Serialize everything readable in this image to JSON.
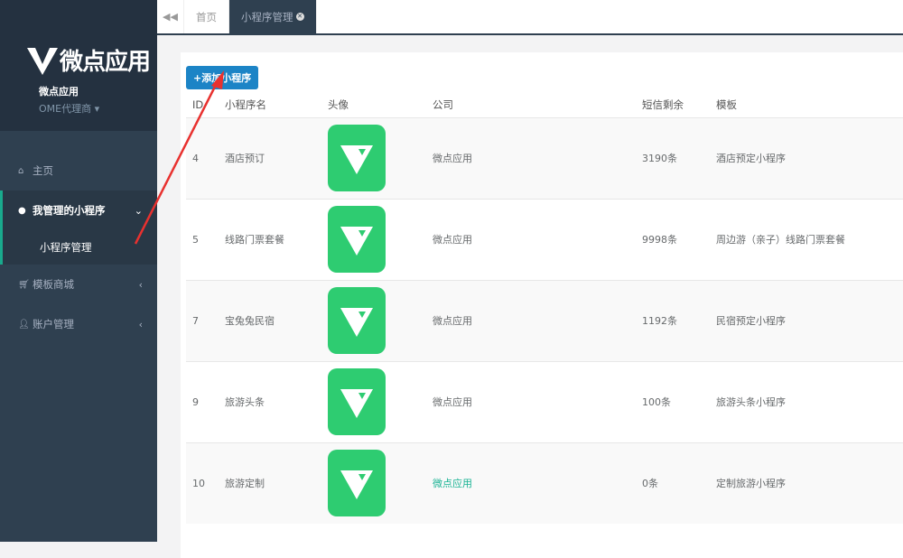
{
  "brand": {
    "logo_text": "微点应用",
    "user_name": "微点应用",
    "role": "OME代理商"
  },
  "sidebar": {
    "items": [
      {
        "label": "主页",
        "icon": "home-icon"
      },
      {
        "label": "我管理的小程序",
        "icon": "wechat-icon",
        "expanded": true,
        "children": [
          {
            "label": "小程序管理"
          }
        ]
      },
      {
        "label": "模板商城",
        "icon": "cart-icon"
      },
      {
        "label": "账户管理",
        "icon": "user-icon"
      }
    ]
  },
  "tabs": [
    {
      "label": "首页"
    },
    {
      "label": "小程序管理",
      "active": true
    }
  ],
  "main": {
    "add_button": "+添加小程序",
    "columns": [
      "ID",
      "小程序名",
      "头像",
      "公司",
      "短信剩余",
      "模板"
    ],
    "rows": [
      {
        "id": "4",
        "name": "酒店预订",
        "company": "微点应用",
        "sms": "3190条",
        "template": "酒店预定小程序"
      },
      {
        "id": "5",
        "name": "线路门票套餐",
        "company": "微点应用",
        "sms": "9998条",
        "template": "周边游（亲子）线路门票套餐"
      },
      {
        "id": "7",
        "name": "宝兔兔民宿",
        "company": "微点应用",
        "sms": "1192条",
        "template": "民宿预定小程序"
      },
      {
        "id": "9",
        "name": "旅游头条",
        "company": "微点应用",
        "sms": "100条",
        "template": "旅游头条小程序"
      },
      {
        "id": "10",
        "name": "旅游定制",
        "company": "微点应用",
        "sms": "0条",
        "template": "定制旅游小程序"
      }
    ]
  },
  "colors": {
    "sidebar": "#2f4050",
    "accent": "#19aa8d",
    "button": "#1c84c6",
    "avatar": "#2ecc71",
    "annotation": "#e8312f"
  }
}
